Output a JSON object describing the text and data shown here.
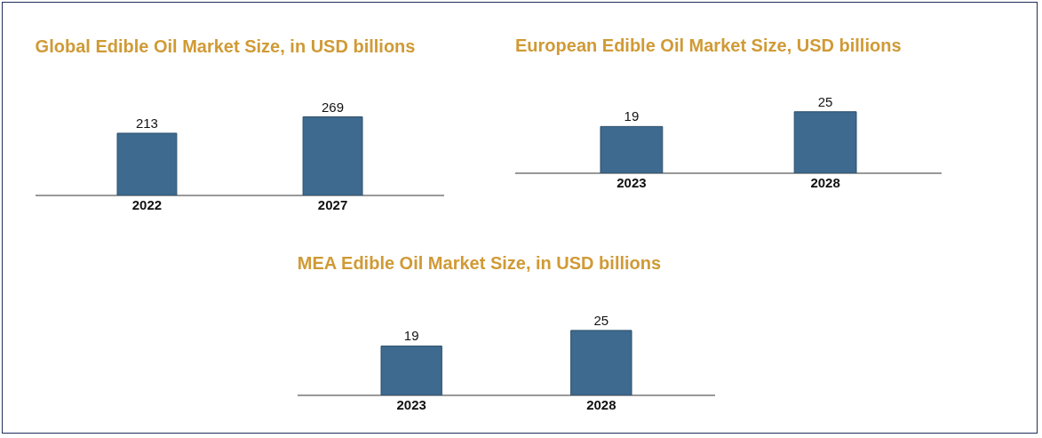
{
  "chart_data": [
    {
      "type": "bar",
      "title": "Global Edible Oil Market Size, in USD billions",
      "categories": [
        "2022",
        "2027"
      ],
      "values": [
        213,
        269
      ],
      "color": "#3d6a8e",
      "data_labels": true,
      "legend": false,
      "grid": false
    },
    {
      "type": "bar",
      "title": "European Edible Oil Market Size, USD billions",
      "categories": [
        "2023",
        "2028"
      ],
      "values": [
        19,
        25
      ],
      "color": "#3d6a8e",
      "data_labels": true,
      "legend": false,
      "grid": false
    },
    {
      "type": "bar",
      "title": "MEA Edible Oil Market Size, in USD billions",
      "categories": [
        "2023",
        "2028"
      ],
      "values": [
        19,
        25
      ],
      "color": "#3d6a8e",
      "data_labels": true,
      "legend": false,
      "grid": false
    }
  ]
}
